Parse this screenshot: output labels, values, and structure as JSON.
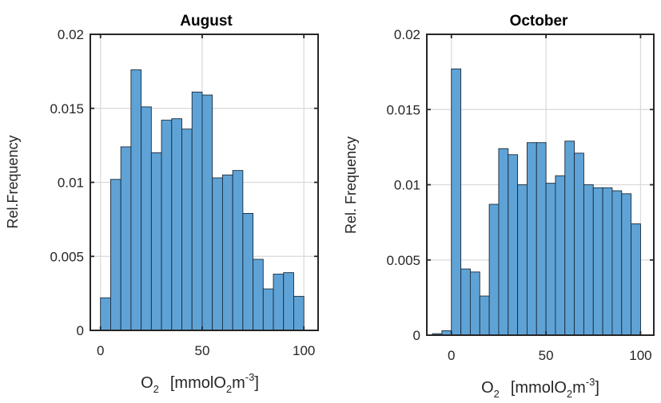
{
  "chart_data": [
    {
      "type": "bar",
      "title": "August",
      "xlabel": "O2 [mmolO2m-3]",
      "xlabel_parts": {
        "main": "O",
        "sub": "2",
        "unit_a": "[mmolO",
        "unit_sub": "2",
        "unit_b": "m",
        "unit_sup": "-3",
        "unit_c": "]"
      },
      "ylabel": "Rel.Frequency",
      "xlim": [
        -5,
        107
      ],
      "ylim": [
        0,
        0.02
      ],
      "xticks": [
        0,
        50,
        100
      ],
      "xtick_labels": [
        "0",
        "50",
        "100"
      ],
      "yticks": [
        0,
        0.005,
        0.01,
        0.015,
        0.02
      ],
      "ytick_labels": [
        "0",
        "0.005",
        "0.01",
        "0.015",
        "0.02"
      ],
      "grid": true,
      "bin_edges": [
        0,
        5,
        10,
        15,
        20,
        25,
        30,
        35,
        40,
        45,
        50,
        55,
        60,
        65,
        70,
        75,
        80,
        85,
        90,
        95,
        100
      ],
      "values": [
        0.0022,
        0.0102,
        0.0124,
        0.0176,
        0.0151,
        0.012,
        0.0142,
        0.0143,
        0.0136,
        0.0161,
        0.0159,
        0.0103,
        0.0105,
        0.0108,
        0.0079,
        0.0048,
        0.0028,
        0.0038,
        0.0039,
        0.0023
      ],
      "color": "#5fa3d6"
    },
    {
      "type": "bar",
      "title": "October",
      "xlabel": "O2 [mmolO2m-3]",
      "xlabel_parts": {
        "main": "O",
        "sub": "2",
        "unit_a": "[mmolO",
        "unit_sub": "2",
        "unit_b": "m",
        "unit_sup": "-3",
        "unit_c": "]"
      },
      "ylabel": "Rel. Frequency",
      "xlim": [
        -13,
        107
      ],
      "ylim": [
        0,
        0.02
      ],
      "xticks": [
        0,
        50,
        100
      ],
      "xtick_labels": [
        "0",
        "50",
        "100"
      ],
      "yticks": [
        0,
        0.005,
        0.01,
        0.015,
        0.02
      ],
      "ytick_labels": [
        "0",
        "0.005",
        "0.01",
        "0.015",
        "0.02"
      ],
      "grid": true,
      "bin_edges": [
        -10,
        -5,
        0,
        5,
        10,
        15,
        20,
        25,
        30,
        35,
        40,
        45,
        50,
        55,
        60,
        65,
        70,
        75,
        80,
        85,
        90,
        95,
        100
      ],
      "values": [
        0.0001,
        0.0003,
        0.0177,
        0.0044,
        0.0042,
        0.0026,
        0.0087,
        0.0124,
        0.012,
        0.01,
        0.0128,
        0.0128,
        0.0101,
        0.0106,
        0.0129,
        0.0121,
        0.01,
        0.0098,
        0.0098,
        0.0096,
        0.0094,
        0.0074
      ],
      "color": "#5fa3d6"
    }
  ]
}
